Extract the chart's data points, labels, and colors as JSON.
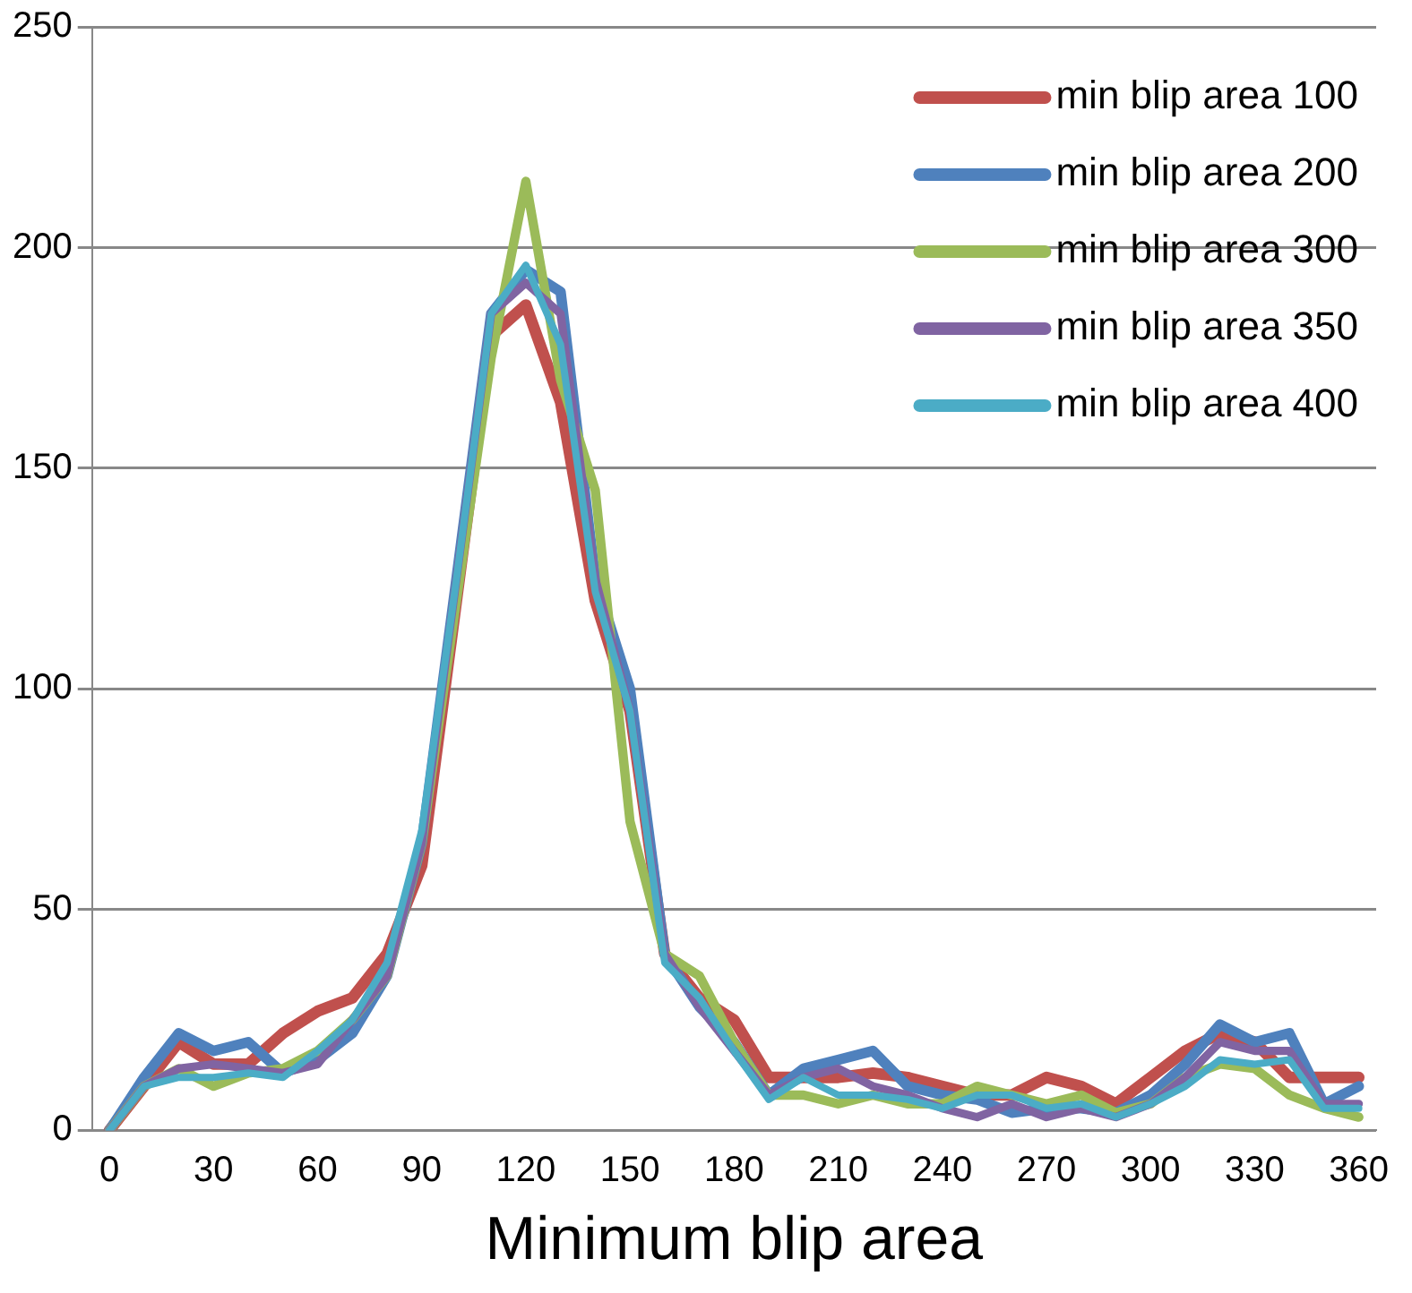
{
  "chart_data": {
    "type": "line",
    "xlabel": "Minimum blip area",
    "categories": [
      "0",
      null,
      null,
      "30",
      null,
      null,
      "60",
      null,
      null,
      "90",
      null,
      null,
      "120",
      null,
      null,
      "150",
      null,
      null,
      "180",
      null,
      null,
      "210",
      null,
      null,
      "240",
      null,
      null,
      "270",
      null,
      null,
      "300",
      null,
      null,
      "330",
      null,
      null,
      "360"
    ],
    "series": [
      {
        "name": "min blip area 100",
        "color": "#c0504d",
        "values": [
          0,
          10,
          20,
          15,
          15,
          22,
          27,
          30,
          40,
          60,
          120,
          180,
          187,
          165,
          120,
          95,
          40,
          30,
          25,
          12,
          12,
          12,
          13,
          12,
          10,
          8,
          8,
          12,
          10,
          6,
          12,
          18,
          22,
          20,
          12,
          12,
          12
        ]
      },
      {
        "name": "min blip area 200",
        "color": "#4f81bd",
        "values": [
          0,
          12,
          22,
          18,
          20,
          13,
          16,
          22,
          35,
          65,
          125,
          185,
          195,
          190,
          125,
          100,
          40,
          28,
          20,
          8,
          14,
          16,
          18,
          10,
          8,
          7,
          4,
          5,
          5,
          4,
          8,
          15,
          24,
          20,
          22,
          6,
          10
        ]
      },
      {
        "name": "min blip area 300",
        "color": "#9bbb59",
        "values": [
          0,
          10,
          14,
          10,
          13,
          14,
          18,
          25,
          35,
          65,
          120,
          175,
          215,
          170,
          145,
          70,
          40,
          35,
          20,
          8,
          8,
          6,
          8,
          6,
          6,
          10,
          8,
          6,
          8,
          4,
          6,
          12,
          15,
          14,
          8,
          5,
          3
        ]
      },
      {
        "name": "min blip area 350",
        "color": "#8064a2",
        "values": [
          0,
          10,
          14,
          15,
          14,
          13,
          15,
          25,
          35,
          65,
          125,
          185,
          192,
          185,
          125,
          95,
          40,
          28,
          18,
          8,
          12,
          14,
          10,
          8,
          5,
          3,
          6,
          3,
          5,
          3,
          6,
          12,
          20,
          18,
          18,
          6,
          6
        ]
      },
      {
        "name": "min blip area 400",
        "color": "#4bacc6",
        "values": [
          0,
          10,
          12,
          12,
          13,
          12,
          18,
          25,
          38,
          68,
          125,
          185,
          196,
          178,
          122,
          95,
          38,
          30,
          18,
          7,
          12,
          8,
          8,
          7,
          5,
          8,
          8,
          5,
          6,
          3,
          6,
          10,
          16,
          15,
          16,
          5,
          5
        ]
      }
    ],
    "ylim": [
      0,
      250
    ],
    "yticks": [
      0,
      50,
      100,
      150,
      200,
      250
    ],
    "grid": "y",
    "legend": "top right",
    "marker": "none",
    "line_style": "solid"
  }
}
